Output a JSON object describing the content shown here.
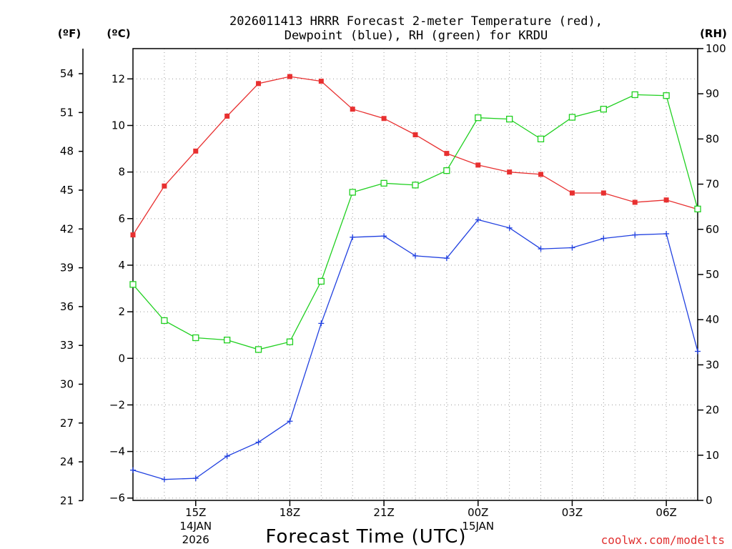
{
  "chart_data": {
    "type": "line",
    "title_line1": "2026011413 HRRR Forecast 2-meter Temperature (red),",
    "title_line2": "Dewpoint (blue), RH (green) for KRDU",
    "xlabel": "Forecast Time (UTC)",
    "credit": "coolwx.com/modelts",
    "unit_f": "(ºF)",
    "unit_c": "(ºC)",
    "unit_rh": "(RH)",
    "x_hours": [
      13,
      14,
      15,
      16,
      17,
      18,
      19,
      20,
      21,
      22,
      23,
      24,
      25,
      26,
      27,
      28,
      29,
      30,
      31
    ],
    "x_ticks": [
      {
        "hour": 15,
        "label": "15Z",
        "sub1": "14JAN",
        "sub2": "2026"
      },
      {
        "hour": 18,
        "label": "18Z",
        "sub1": "",
        "sub2": ""
      },
      {
        "hour": 21,
        "label": "21Z",
        "sub1": "",
        "sub2": ""
      },
      {
        "hour": 24,
        "label": "00Z",
        "sub1": "15JAN",
        "sub2": ""
      },
      {
        "hour": 27,
        "label": "03Z",
        "sub1": "",
        "sub2": ""
      },
      {
        "hour": 30,
        "label": "06Z",
        "sub1": "",
        "sub2": ""
      }
    ],
    "xlim": [
      13,
      31
    ],
    "ylim_c": [
      -6.1,
      13.3
    ],
    "ylim_rh": [
      0,
      100
    ],
    "yticks_c": [
      "-6",
      "-4",
      "-2",
      "0",
      "2",
      "4",
      "6",
      "8",
      "10",
      "12"
    ],
    "yticks_f": [
      "21",
      "24",
      "27",
      "30",
      "33",
      "36",
      "39",
      "42",
      "45",
      "48",
      "51",
      "54"
    ],
    "yticks_rh": [
      "0",
      "10",
      "20",
      "30",
      "40",
      "50",
      "60",
      "70",
      "80",
      "90",
      "100"
    ],
    "series": [
      {
        "name": "Temperature",
        "axis": "c",
        "color": "#e83030",
        "marker": "filled-square",
        "values": [
          5.3,
          7.4,
          8.9,
          10.4,
          11.8,
          12.1,
          11.9,
          10.7,
          10.3,
          9.6,
          8.8,
          8.3,
          8.0,
          7.9,
          7.1,
          7.1,
          6.7,
          6.8,
          6.4
        ]
      },
      {
        "name": "Dewpoint",
        "axis": "c",
        "color": "#2040e0",
        "marker": "plus",
        "values": [
          -4.8,
          -5.2,
          -5.15,
          -4.2,
          -3.6,
          -2.7,
          1.5,
          5.2,
          5.25,
          4.4,
          4.3,
          5.95,
          5.6,
          4.7,
          4.75,
          5.15,
          5.3,
          5.35,
          0.3
        ]
      },
      {
        "name": "RH",
        "axis": "rh",
        "color": "#20d020",
        "marker": "open-square",
        "values": [
          47.8,
          39.8,
          36.0,
          35.5,
          33.4,
          35.1,
          48.5,
          68.2,
          70.2,
          69.8,
          73.0,
          84.7,
          84.4,
          80.0,
          84.8,
          86.6,
          89.8,
          89.6,
          64.5
        ]
      }
    ]
  }
}
